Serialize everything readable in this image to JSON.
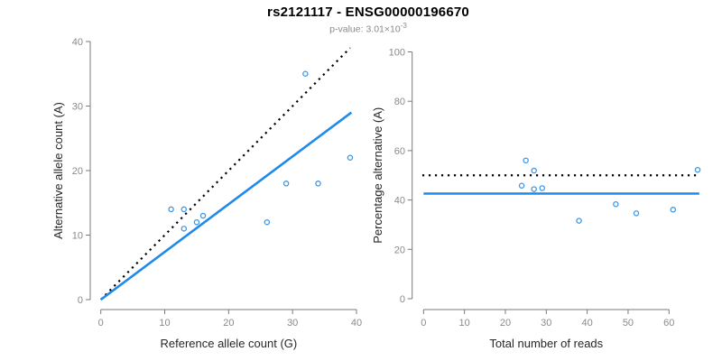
{
  "header": {
    "title": "rs2121117 - ENSG00000196670",
    "subtitle_prefix": "p-value: 3.01×10",
    "subtitle_exponent": "-3"
  },
  "colors": {
    "fit_line_blue": "#1e8aea",
    "point_blue": "#3e97e6",
    "dotted_black": "#000000",
    "axis_gray": "#7a7a7a",
    "tick_label_gray": "#8a8a8a"
  },
  "chart_data": [
    {
      "type": "scatter",
      "name": "allele-counts",
      "xlabel": "Reference allele count (G)",
      "ylabel": "Alternative allele count (A)",
      "xlim": [
        0,
        40
      ],
      "ylim": [
        0,
        40
      ],
      "xticks": [
        0,
        10,
        20,
        30,
        40
      ],
      "yticks": [
        0,
        10,
        20,
        30,
        40
      ],
      "grid": false,
      "legend": null,
      "points": [
        [
          11,
          14
        ],
        [
          13,
          14
        ],
        [
          13,
          11
        ],
        [
          15,
          12
        ],
        [
          16,
          13
        ],
        [
          26,
          12
        ],
        [
          29,
          18
        ],
        [
          32,
          35
        ],
        [
          34,
          18
        ],
        [
          39,
          22
        ]
      ],
      "lines": [
        {
          "name": "identity-line",
          "style": "dotted",
          "color": "#000000",
          "from": [
            0,
            0
          ],
          "to": [
            39,
            39
          ]
        },
        {
          "name": "fit-line",
          "style": "solid",
          "color": "#1e8aea",
          "from": [
            0,
            0
          ],
          "to": [
            39.2,
            29.0
          ]
        }
      ]
    },
    {
      "type": "scatter",
      "name": "percentage-alternative",
      "xlabel": "Total number of reads",
      "ylabel": "Percentage alternative (A)",
      "xlim": [
        0,
        67.5
      ],
      "ylim": [
        0,
        100
      ],
      "xticks": [
        0,
        10,
        20,
        30,
        40,
        50,
        60
      ],
      "yticks": [
        0,
        20,
        40,
        60,
        80,
        100
      ],
      "grid": false,
      "legend": null,
      "points": [
        [
          24,
          45.8
        ],
        [
          25,
          56.0
        ],
        [
          27,
          51.9
        ],
        [
          27,
          44.4
        ],
        [
          29,
          44.8
        ],
        [
          38,
          31.6
        ],
        [
          47,
          38.3
        ],
        [
          52,
          34.6
        ],
        [
          61,
          36.1
        ],
        [
          67,
          52.2
        ]
      ],
      "lines": [
        {
          "name": "expected-50pct-line",
          "style": "dotted",
          "color": "#000000",
          "from": [
            -0.3,
            50
          ],
          "to": [
            67.3,
            50
          ]
        },
        {
          "name": "mean-pct-line",
          "style": "solid",
          "color": "#1e8aea",
          "from": [
            0,
            42.6
          ],
          "to": [
            67.4,
            42.6
          ]
        }
      ]
    }
  ]
}
